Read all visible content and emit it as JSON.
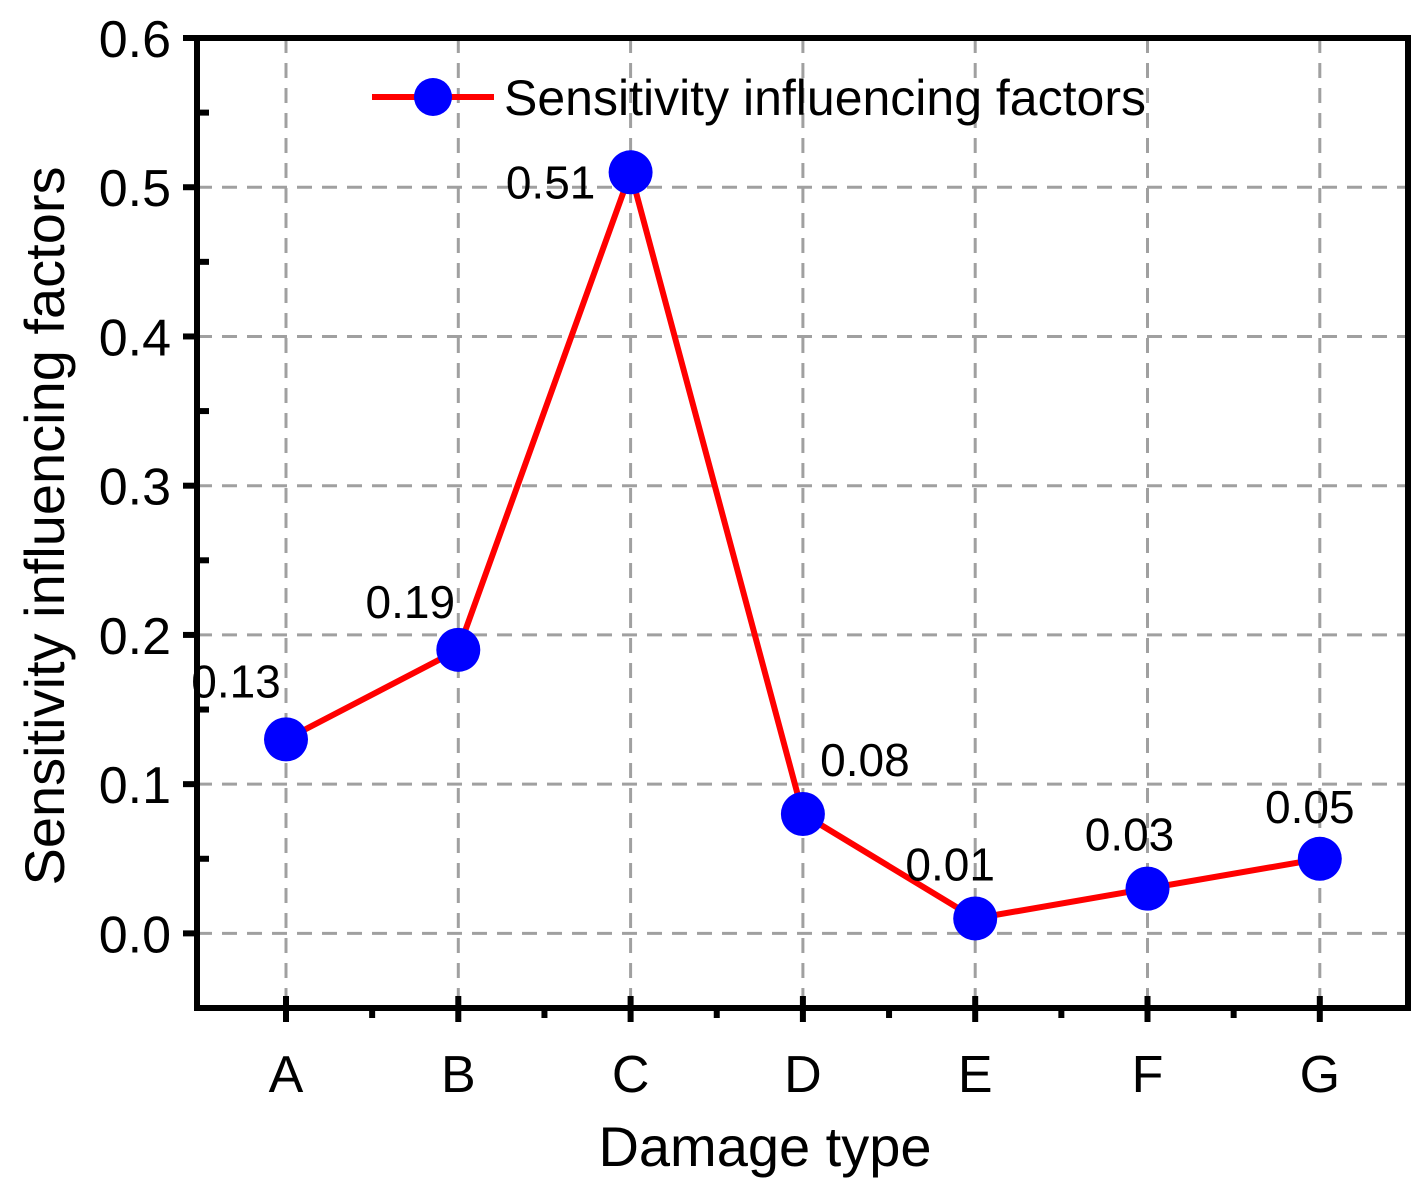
{
  "chart_data": {
    "type": "line",
    "categories": [
      "A",
      "B",
      "C",
      "D",
      "E",
      "F",
      "G"
    ],
    "series": [
      {
        "name": "Sensitivity influencing factors",
        "values": [
          0.13,
          0.19,
          0.51,
          0.08,
          0.01,
          0.03,
          0.05
        ],
        "line_color": "#ff0000",
        "marker_color": "#0000ff"
      }
    ],
    "data_labels": [
      "0.13",
      "0.19",
      "0.51",
      "0.08",
      "0.01",
      "0.03",
      "0.05"
    ],
    "xlabel": "Damage type",
    "ylabel": "Sensitivity influencing factors",
    "ylim": [
      -0.05,
      0.6
    ],
    "yticks": [
      0.0,
      0.1,
      0.2,
      0.3,
      0.4,
      0.5,
      0.6
    ],
    "ytick_labels": [
      "0.0",
      "0.1",
      "0.2",
      "0.3",
      "0.4",
      "0.5",
      "0.6"
    ],
    "grid": true,
    "legend_position": "top-right",
    "colors": {
      "grid": "#a0a0a0",
      "axis": "#000000"
    }
  }
}
